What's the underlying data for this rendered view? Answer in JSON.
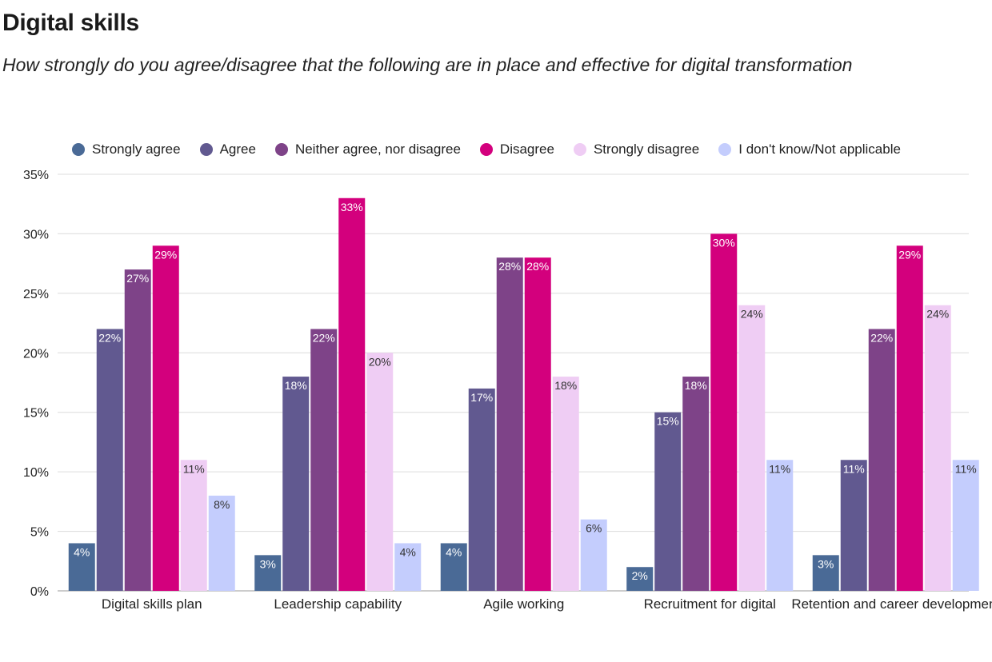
{
  "title": "Digital skills",
  "subtitle": "How strongly do you agree/disagree that the following are in place and effective for digital transformation",
  "chart_data": {
    "type": "bar",
    "categories": [
      "Digital skills plan",
      "Leadership capability",
      "Agile working",
      "Recruitment for digital",
      "Retention and career development"
    ],
    "series": [
      {
        "name": "Strongly agree",
        "color": "#4a6a96",
        "values": [
          4,
          3,
          4,
          2,
          3
        ]
      },
      {
        "name": "Agree",
        "color": "#615990",
        "values": [
          22,
          18,
          17,
          15,
          11
        ]
      },
      {
        "name": "Neither agree, nor disagree",
        "color": "#7e4388",
        "values": [
          27,
          22,
          28,
          18,
          22
        ]
      },
      {
        "name": "Disagree",
        "color": "#d3007d",
        "values": [
          29,
          33,
          28,
          30,
          29
        ]
      },
      {
        "name": "Strongly disagree",
        "color": "#efcdf4",
        "values": [
          11,
          20,
          18,
          24,
          24
        ]
      },
      {
        "name": "I don't know/Not applicable",
        "color": "#c4cdfd",
        "values": [
          8,
          4,
          6,
          11,
          11
        ]
      }
    ],
    "ylim": [
      0,
      35
    ],
    "yticks": [
      0,
      5,
      10,
      15,
      20,
      25,
      30,
      35
    ],
    "ytick_labels": [
      "0%",
      "5%",
      "10%",
      "15%",
      "20%",
      "25%",
      "30%",
      "35%"
    ],
    "value_suffix": "%",
    "legend_position": "top",
    "grid": true
  }
}
